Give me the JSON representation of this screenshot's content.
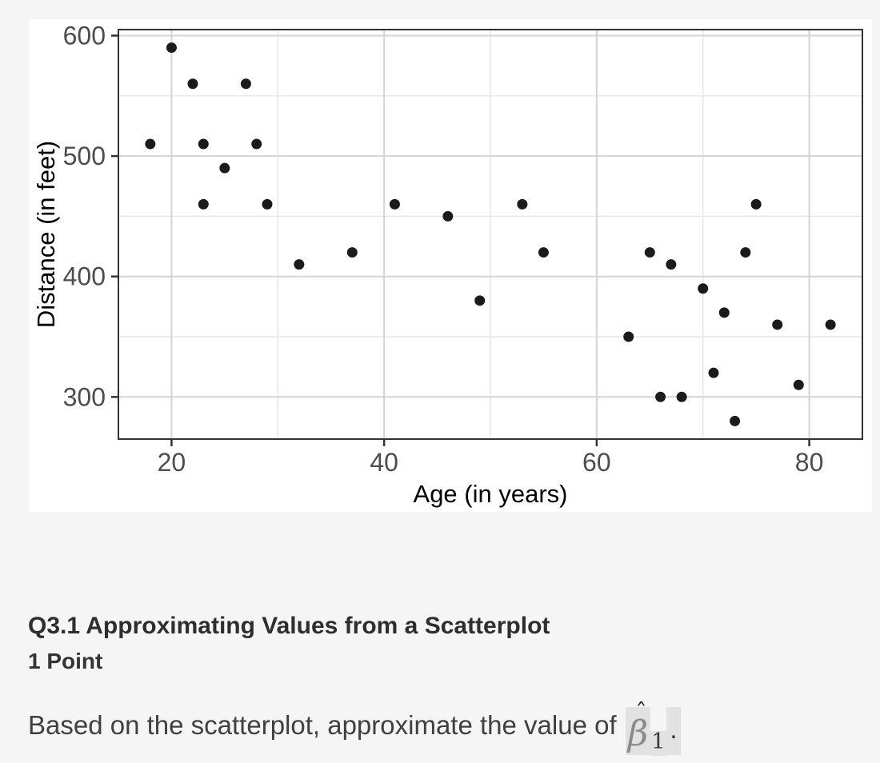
{
  "page": {
    "background": "#f5f5f6",
    "card_background": "#ffffff"
  },
  "chart_data": {
    "type": "scatter",
    "title": "",
    "xlabel": "Age (in years)",
    "ylabel": "Distance (in feet)",
    "xlim": [
      15,
      85
    ],
    "ylim": [
      265,
      605
    ],
    "x_ticks": [
      20,
      40,
      60,
      80
    ],
    "y_ticks": [
      300,
      400,
      500,
      600
    ],
    "x_minor_gridlines": [
      30,
      50,
      70
    ],
    "y_minor_gridlines": [
      350,
      450,
      550
    ],
    "grid": "on",
    "legend": "none",
    "points": [
      [
        18,
        510
      ],
      [
        20,
        590
      ],
      [
        22,
        560
      ],
      [
        23,
        510
      ],
      [
        23,
        460
      ],
      [
        25,
        490
      ],
      [
        27,
        560
      ],
      [
        28,
        510
      ],
      [
        29,
        460
      ],
      [
        32,
        410
      ],
      [
        37,
        420
      ],
      [
        41,
        460
      ],
      [
        46,
        450
      ],
      [
        49,
        380
      ],
      [
        53,
        460
      ],
      [
        55,
        420
      ],
      [
        63,
        350
      ],
      [
        65,
        420
      ],
      [
        66,
        300
      ],
      [
        67,
        410
      ],
      [
        68,
        300
      ],
      [
        70,
        390
      ],
      [
        71,
        320
      ],
      [
        72,
        370
      ],
      [
        73,
        280
      ],
      [
        74,
        420
      ],
      [
        75,
        460
      ],
      [
        77,
        360
      ],
      [
        79,
        310
      ],
      [
        82,
        360
      ]
    ],
    "colors": {
      "point": "#1b1b1b",
      "grid_major": "#d4d4d4",
      "grid_minor": "#e7e7e7",
      "panel_border": "#333333",
      "tick_mark": "#333333",
      "tick_label": "#4d4d4d",
      "axis_title": "#000000",
      "panel_background": "#ffffff"
    }
  },
  "question": {
    "title": "Q3.1 Approximating Values from a Scatterplot",
    "points_label": "1 Point",
    "prompt_prefix": "Based on the scatterplot, approximate the value of ",
    "math_symbol": "β",
    "math_hat": "ˆ",
    "math_subscript": "1",
    "prompt_suffix": ".",
    "math_highlight_color": "#e2e2e3"
  }
}
